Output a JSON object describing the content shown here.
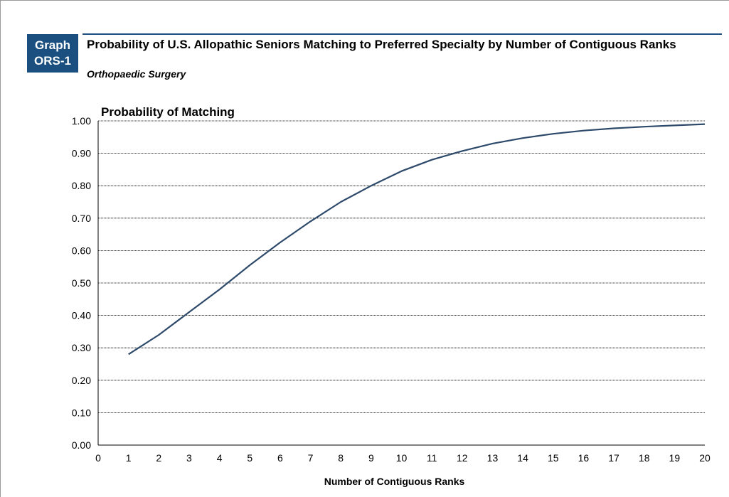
{
  "header": {
    "badge_line1": "Graph",
    "badge_line2": "ORS-1",
    "title": "Probability of U.S. Allopathic Seniors Matching to Preferred Specialty by Number of Contiguous Ranks",
    "subtitle": "Orthopaedic Surgery"
  },
  "colors": {
    "badge": "#1a4f7f",
    "line": "#2e4a6b",
    "grid": "#000000"
  },
  "chart_data": {
    "type": "line",
    "title": "Probability of Matching",
    "xlabel": "Number of Contiguous Ranks",
    "ylabel": "",
    "xlim": [
      0,
      20
    ],
    "ylim": [
      0,
      1
    ],
    "x_ticks": [
      "0",
      "1",
      "2",
      "3",
      "4",
      "5",
      "6",
      "7",
      "8",
      "9",
      "10",
      "11",
      "12",
      "13",
      "14",
      "15",
      "16",
      "17",
      "18",
      "19",
      "20"
    ],
    "y_ticks": [
      "0.00",
      "0.10",
      "0.20",
      "0.30",
      "0.40",
      "0.50",
      "0.60",
      "0.70",
      "0.80",
      "0.90",
      "1.00"
    ],
    "grid": true,
    "legend": "none",
    "series": [
      {
        "x": [
          1,
          2,
          3,
          4,
          5,
          6,
          7,
          8,
          9,
          10,
          11,
          12,
          13,
          14,
          15,
          16,
          17,
          18,
          19,
          20
        ],
        "values": [
          0.28,
          0.34,
          0.41,
          0.48,
          0.555,
          0.625,
          0.69,
          0.75,
          0.8,
          0.845,
          0.88,
          0.907,
          0.93,
          0.947,
          0.96,
          0.97,
          0.977,
          0.982,
          0.986,
          0.99
        ]
      }
    ]
  }
}
